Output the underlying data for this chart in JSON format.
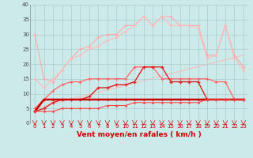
{
  "x": [
    0,
    1,
    2,
    3,
    4,
    5,
    6,
    7,
    8,
    9,
    10,
    11,
    12,
    13,
    14,
    15,
    16,
    17,
    18,
    19,
    20,
    21,
    22,
    23
  ],
  "line1": [
    30,
    15,
    14,
    18,
    22,
    25,
    26,
    29,
    30,
    30,
    33,
    33,
    36,
    33,
    36,
    36,
    33,
    33,
    33,
    23,
    23,
    33,
    23,
    19
  ],
  "line2": [
    15,
    12,
    15,
    18,
    22,
    23,
    25,
    26,
    28,
    29,
    31,
    33,
    36,
    33,
    36,
    33,
    33,
    33,
    32,
    22,
    23,
    33,
    22,
    18
  ],
  "line3": [
    5,
    8,
    11,
    13,
    14,
    14,
    15,
    15,
    15,
    15,
    15,
    19,
    19,
    19,
    15,
    15,
    15,
    15,
    15,
    15,
    14,
    14,
    8,
    8
  ],
  "line4": [
    4,
    5,
    7,
    8,
    8,
    8,
    9,
    12,
    12,
    13,
    13,
    14,
    19,
    19,
    19,
    14,
    14,
    14,
    14,
    8,
    8,
    8,
    8,
    8
  ],
  "line5": [
    4,
    8,
    8,
    8,
    8,
    8,
    8,
    8,
    8,
    8,
    8,
    8,
    8,
    8,
    8,
    8,
    8,
    8,
    8,
    8,
    8,
    8,
    8,
    8
  ],
  "line6": [
    4,
    4,
    4,
    5,
    5,
    5,
    5,
    5,
    6,
    6,
    6,
    7,
    7,
    7,
    7,
    7,
    7,
    7,
    7,
    8,
    8,
    8,
    8,
    8
  ],
  "trend_x": [
    0,
    23
  ],
  "trend_y": [
    5,
    23
  ],
  "background_color": "#cceaea",
  "grid_color": "#aacccc",
  "line1_color": "#ffaaaa",
  "line2_color": "#ffbbbb",
  "line3_color": "#ff6666",
  "line4_color": "#dd2222",
  "line5_color": "#cc0000",
  "line6_color": "#ff4444",
  "trend_color": "#ffbbbb",
  "xlabel": "Vent moyen/en rafales ( km/h )",
  "xlim": [
    -0.5,
    23.5
  ],
  "ylim": [
    0,
    40
  ],
  "yticks": [
    0,
    5,
    10,
    15,
    20,
    25,
    30,
    35,
    40
  ],
  "xticks": [
    0,
    1,
    2,
    3,
    4,
    5,
    6,
    7,
    8,
    9,
    10,
    11,
    12,
    13,
    14,
    15,
    16,
    17,
    18,
    19,
    20,
    21,
    22,
    23
  ]
}
